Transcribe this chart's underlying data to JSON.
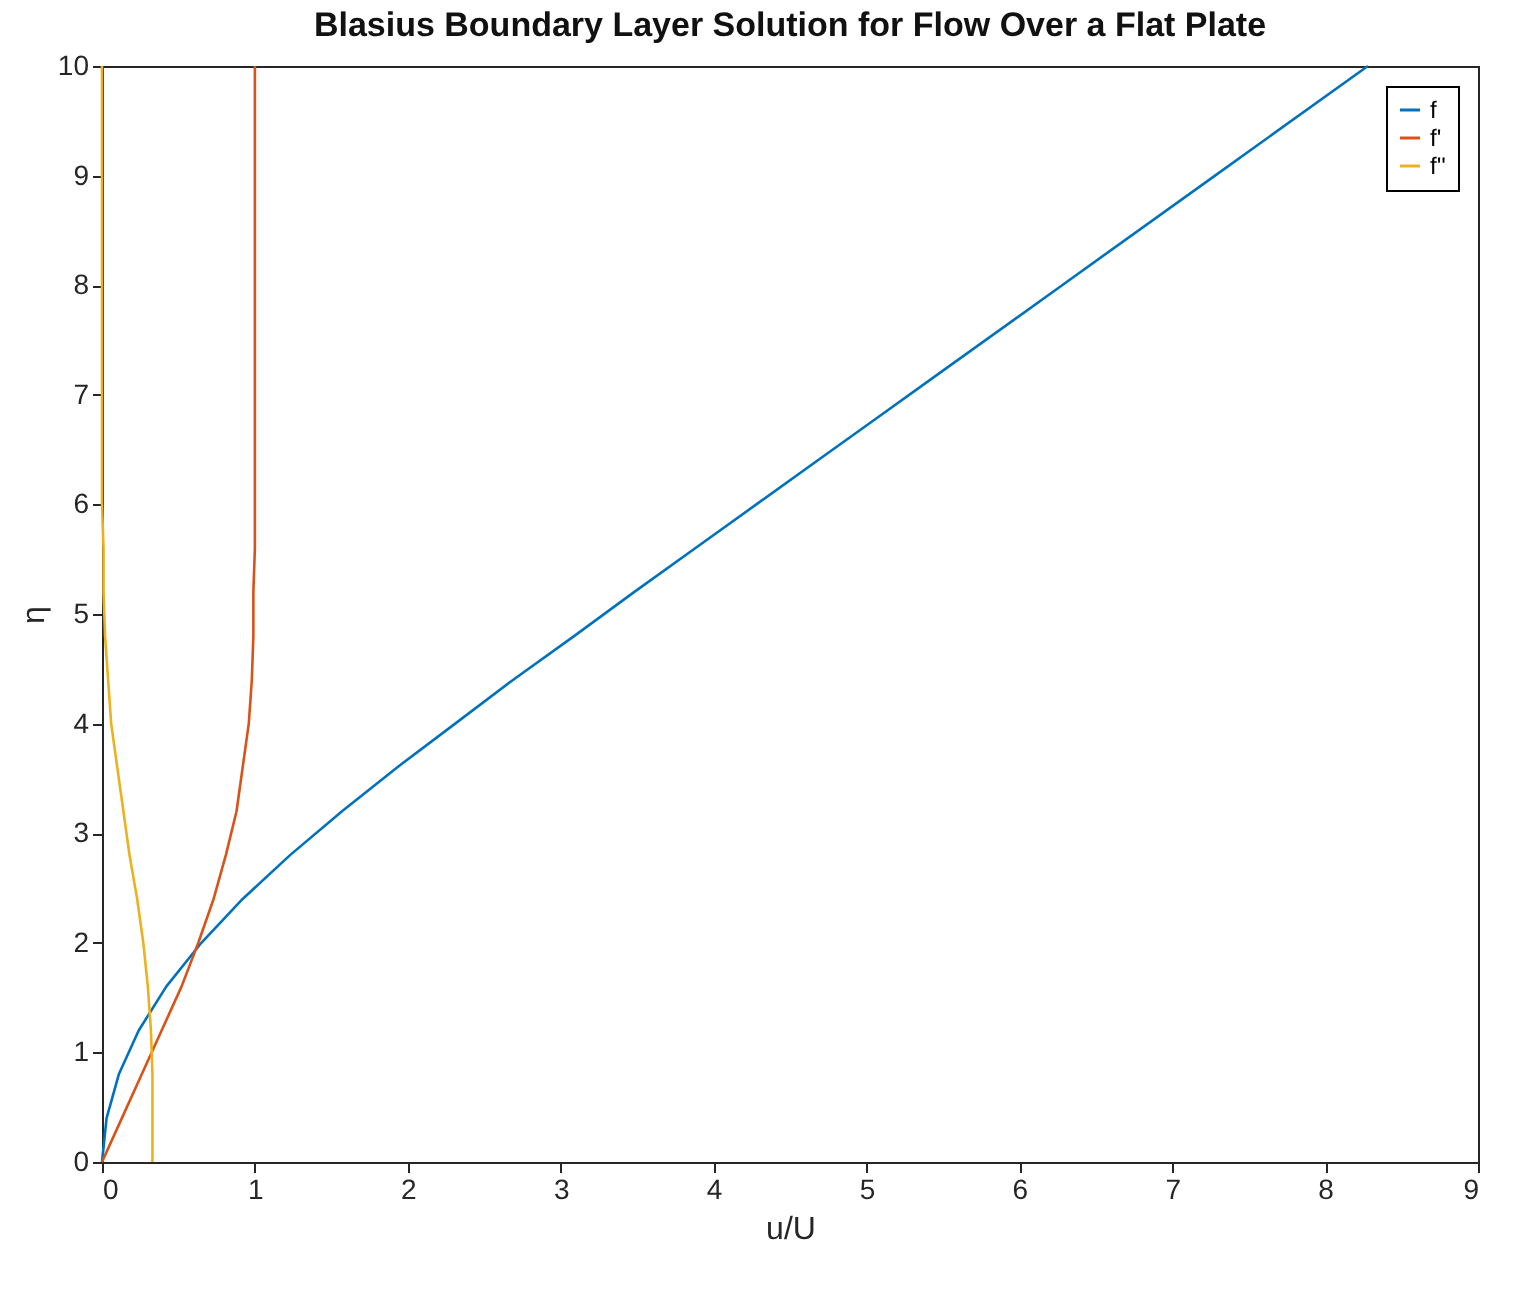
{
  "chart_data": {
    "type": "line",
    "title": "Blasius Boundary Layer Solution for Flow Over a Flat Plate",
    "xlabel": "u/U",
    "ylabel": "η",
    "xlim": [
      0,
      9
    ],
    "ylim": [
      0,
      10
    ],
    "xticks": [
      0,
      1,
      2,
      3,
      4,
      5,
      6,
      7,
      8,
      9
    ],
    "yticks": [
      0,
      1,
      2,
      3,
      4,
      5,
      6,
      7,
      8,
      9,
      10
    ],
    "grid": false,
    "legend": "top right",
    "line_style": "solid",
    "marker": "none",
    "series": [
      {
        "name": "f",
        "color": "#0072bd",
        "x": [
          0,
          0.03,
          0.11,
          0.24,
          0.42,
          0.65,
          0.92,
          1.23,
          1.57,
          1.93,
          2.31,
          2.69,
          3.09,
          3.48,
          3.88,
          4.28,
          4.68,
          5.08,
          5.48,
          6.28,
          7.28,
          8.28
        ],
        "values": [
          0,
          0.4,
          0.8,
          1.2,
          1.6,
          2.0,
          2.4,
          2.8,
          3.2,
          3.6,
          4.0,
          4.4,
          4.8,
          5.2,
          5.6,
          6.0,
          6.4,
          6.8,
          7.2,
          8.0,
          9.0,
          10.0
        ]
      },
      {
        "name": "f'",
        "color": "#d95319",
        "x": [
          0,
          0.13,
          0.26,
          0.39,
          0.52,
          0.63,
          0.73,
          0.81,
          0.88,
          0.92,
          0.96,
          0.98,
          0.99,
          0.99,
          1.0,
          1.0,
          1.0,
          1.0,
          1.0
        ],
        "values": [
          0,
          0.4,
          0.8,
          1.2,
          1.6,
          2.0,
          2.4,
          2.8,
          3.2,
          3.6,
          4.0,
          4.4,
          4.8,
          5.2,
          5.6,
          6.0,
          6.4,
          8.0,
          10.0
        ]
      },
      {
        "name": "f''",
        "color": "#edb120",
        "x": [
          0.33,
          0.33,
          0.33,
          0.32,
          0.3,
          0.27,
          0.23,
          0.18,
          0.14,
          0.1,
          0.06,
          0.04,
          0.02,
          0.01,
          0.01,
          0,
          0,
          0
        ],
        "values": [
          0,
          0.4,
          0.8,
          1.2,
          1.6,
          2.0,
          2.4,
          2.8,
          3.2,
          3.6,
          4.0,
          4.4,
          4.8,
          5.2,
          5.6,
          6.0,
          8.0,
          10.0
        ]
      }
    ]
  }
}
